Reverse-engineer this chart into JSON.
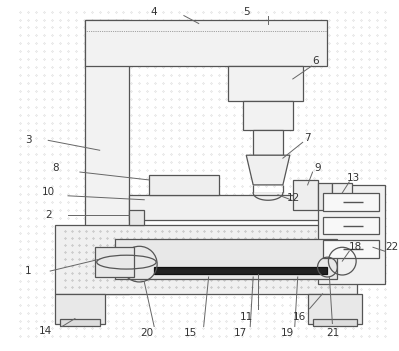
{
  "bg_color": "#ffffff",
  "line_color": "#555555",
  "label_color": "#333333",
  "label_fontsize": 7.5,
  "figsize": [
    3.99,
    3.51
  ],
  "dpi": 100
}
